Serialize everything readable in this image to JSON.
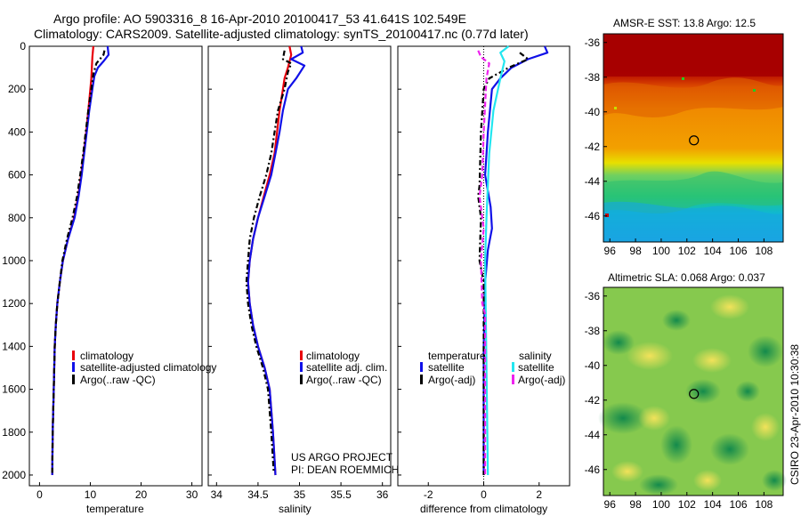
{
  "header": {
    "line1": "Argo profile: AO 5903316_8 16-Apr-2010 20100417_53 41.641S 102.549E",
    "line2": "Climatology: CARS2009. Satellite-adjusted climatology: synTS_20100417.nc (0.77d later)"
  },
  "footer_project": "US ARGO PROJECT",
  "footer_pi": "PI: DEAN ROEMMICH",
  "credit": "CSIRO 23-Apr-2010 10:30:38",
  "colors": {
    "climatology": "#e8000b",
    "satellite": "#1010e8",
    "argo": "#000000",
    "salinity_sat": "#22e6f0",
    "salinity_argo": "#ee22ee"
  },
  "chart_data": [
    {
      "type": "line",
      "xlabel": "temperature",
      "ylabel": "",
      "xlim": [
        -2,
        32
      ],
      "ylim": [
        2050,
        0
      ],
      "xticks": [
        "0",
        "10",
        "20",
        "30"
      ],
      "yticks": [
        "0",
        "200",
        "400",
        "600",
        "800",
        "1000",
        "1200",
        "1400",
        "1600",
        "1800",
        "2000"
      ],
      "legend": [
        "climatology",
        "satellite-adjusted climatology",
        "Argo(..raw -QC)"
      ],
      "series": [
        {
          "name": "climatology",
          "color": "#e8000b",
          "dash": "",
          "points": [
            [
              10.6,
              0
            ],
            [
              10.4,
              50
            ],
            [
              10.3,
              100
            ],
            [
              10.2,
              150
            ],
            [
              10,
              200
            ],
            [
              9.6,
              300
            ],
            [
              9.2,
              400
            ],
            [
              8.7,
              500
            ],
            [
              8.2,
              600
            ],
            [
              7.6,
              700
            ],
            [
              6.8,
              800
            ],
            [
              5.6,
              900
            ],
            [
              4.6,
              1000
            ],
            [
              4,
              1100
            ],
            [
              3.5,
              1200
            ],
            [
              3.2,
              1300
            ],
            [
              3,
              1400
            ],
            [
              2.8,
              1600
            ],
            [
              2.6,
              1800
            ],
            [
              2.5,
              2000
            ]
          ]
        },
        {
          "name": "satellite-adjusted climatology",
          "color": "#1010e8",
          "dash": "",
          "points": [
            [
              13.4,
              0
            ],
            [
              13.6,
              40
            ],
            [
              12.6,
              70
            ],
            [
              11.5,
              100
            ],
            [
              10.8,
              140
            ],
            [
              10.4,
              200
            ],
            [
              9.8,
              300
            ],
            [
              9.3,
              400
            ],
            [
              8.8,
              500
            ],
            [
              8.3,
              600
            ],
            [
              7.7,
              700
            ],
            [
              6.9,
              800
            ],
            [
              5.6,
              900
            ],
            [
              4.6,
              1000
            ],
            [
              4,
              1100
            ],
            [
              3.5,
              1200
            ],
            [
              3.2,
              1300
            ],
            [
              3,
              1400
            ],
            [
              2.8,
              1600
            ],
            [
              2.6,
              1800
            ],
            [
              2.5,
              2000
            ]
          ]
        },
        {
          "name": "Argo(..raw -QC)",
          "color": "#000000",
          "dash": "6,3,2,3",
          "points": [
            [
              12.8,
              20
            ],
            [
              12.6,
              40
            ],
            [
              11.2,
              80
            ],
            [
              10.6,
              130
            ],
            [
              10.2,
              200
            ],
            [
              9.6,
              300
            ],
            [
              9.1,
              400
            ],
            [
              8.6,
              500
            ],
            [
              8,
              600
            ],
            [
              7.4,
              700
            ],
            [
              6.5,
              800
            ],
            [
              5.4,
              900
            ],
            [
              4.5,
              1000
            ],
            [
              4,
              1100
            ],
            [
              3.5,
              1200
            ],
            [
              3.2,
              1300
            ],
            [
              3,
              1400
            ],
            [
              2.8,
              1600
            ],
            [
              2.6,
              1800
            ],
            [
              2.5,
              1990
            ]
          ]
        }
      ]
    },
    {
      "type": "line",
      "xlabel": "salinity",
      "xlim": [
        33.9,
        36.1
      ],
      "ylim": [
        2050,
        0
      ],
      "xticks": [
        "34",
        "34.5",
        "35",
        "35.5",
        "36"
      ],
      "legend": [
        "climatology",
        "satellite adj. clim.",
        "Argo(..raw -QC)"
      ],
      "series": [
        {
          "name": "climatology",
          "color": "#e8000b",
          "dash": "",
          "points": [
            [
              34.88,
              0
            ],
            [
              34.9,
              40
            ],
            [
              34.86,
              100
            ],
            [
              34.82,
              150
            ],
            [
              34.8,
              200
            ],
            [
              34.76,
              300
            ],
            [
              34.73,
              400
            ],
            [
              34.7,
              500
            ],
            [
              34.64,
              600
            ],
            [
              34.57,
              700
            ],
            [
              34.5,
              800
            ],
            [
              34.44,
              900
            ],
            [
              34.4,
              1000
            ],
            [
              34.38,
              1100
            ],
            [
              34.4,
              1200
            ],
            [
              34.44,
              1300
            ],
            [
              34.5,
              1400
            ],
            [
              34.58,
              1500
            ],
            [
              34.64,
              1600
            ],
            [
              34.68,
              1800
            ],
            [
              34.71,
              2000
            ]
          ]
        },
        {
          "name": "satellite adj. clim.",
          "color": "#1010e8",
          "dash": "",
          "points": [
            [
              35.02,
              0
            ],
            [
              35.04,
              30
            ],
            [
              34.9,
              60
            ],
            [
              35.06,
              90
            ],
            [
              34.96,
              150
            ],
            [
              34.86,
              200
            ],
            [
              34.8,
              300
            ],
            [
              34.76,
              400
            ],
            [
              34.71,
              500
            ],
            [
              34.66,
              600
            ],
            [
              34.58,
              700
            ],
            [
              34.5,
              800
            ],
            [
              34.44,
              900
            ],
            [
              34.4,
              1000
            ],
            [
              34.38,
              1100
            ],
            [
              34.4,
              1200
            ],
            [
              34.44,
              1300
            ],
            [
              34.5,
              1400
            ],
            [
              34.58,
              1500
            ],
            [
              34.64,
              1600
            ],
            [
              34.68,
              1800
            ],
            [
              34.71,
              2000
            ]
          ]
        },
        {
          "name": "Argo(..raw -QC)",
          "color": "#000000",
          "dash": "6,3,2,3",
          "points": [
            [
              34.82,
              20
            ],
            [
              34.8,
              60
            ],
            [
              34.9,
              80
            ],
            [
              34.86,
              120
            ],
            [
              34.82,
              200
            ],
            [
              34.74,
              300
            ],
            [
              34.7,
              400
            ],
            [
              34.66,
              500
            ],
            [
              34.6,
              600
            ],
            [
              34.52,
              700
            ],
            [
              34.45,
              800
            ],
            [
              34.4,
              900
            ],
            [
              34.38,
              1000
            ],
            [
              34.36,
              1100
            ],
            [
              34.38,
              1200
            ],
            [
              34.42,
              1300
            ],
            [
              34.48,
              1400
            ],
            [
              34.56,
              1500
            ],
            [
              34.62,
              1600
            ],
            [
              34.66,
              1800
            ],
            [
              34.69,
              1990
            ]
          ]
        }
      ]
    },
    {
      "type": "line",
      "xlabel": "difference from climatology",
      "xlim": [
        -3.1,
        3.1
      ],
      "ylim": [
        2050,
        0
      ],
      "xticks": [
        "-2",
        "0",
        "2"
      ],
      "legend_temperature_title": "temperature",
      "legend_salinity_title": "salinity",
      "legend": [
        "satellite",
        "Argo(-adj)",
        "satellite",
        "Argo(-adj)"
      ],
      "series": [
        {
          "name": "satellite",
          "group": "temperature",
          "color": "#1010e8",
          "dash": "",
          "points": [
            [
              2.2,
              0
            ],
            [
              2.3,
              30
            ],
            [
              1.6,
              60
            ],
            [
              1,
              100
            ],
            [
              0.6,
              150
            ],
            [
              0.3,
              200
            ],
            [
              0.15,
              400
            ],
            [
              0.05,
              600
            ],
            [
              0.25,
              750
            ],
            [
              0.3,
              850
            ],
            [
              0.15,
              950
            ],
            [
              0.05,
              1100
            ],
            [
              0,
              1400
            ],
            [
              0,
              2000
            ]
          ]
        },
        {
          "name": "Argo(-adj)",
          "group": "temperature",
          "color": "#000000",
          "dash": "6,3,2,3",
          "points": [
            [
              1.3,
              30
            ],
            [
              1.6,
              60
            ],
            [
              0.9,
              100
            ],
            [
              0.2,
              150
            ],
            [
              0,
              200
            ],
            [
              -0.1,
              400
            ],
            [
              -0.15,
              650
            ],
            [
              -0.2,
              700
            ],
            [
              -0.1,
              800
            ],
            [
              -0.15,
              1000
            ],
            [
              0,
              1100
            ],
            [
              0,
              1400
            ],
            [
              0,
              2000
            ]
          ]
        },
        {
          "name": "satellite",
          "group": "salinity",
          "color": "#22e6f0",
          "dash": "",
          "points": [
            [
              0.9,
              0
            ],
            [
              0.6,
              30
            ],
            [
              0.75,
              70
            ],
            [
              0.6,
              150
            ],
            [
              0.35,
              300
            ],
            [
              0.2,
              500
            ],
            [
              0.1,
              800
            ],
            [
              0.05,
              1000
            ],
            [
              0.1,
              1500
            ],
            [
              0.15,
              2000
            ]
          ]
        },
        {
          "name": "Argo(-adj)",
          "group": "salinity",
          "color": "#ee22ee",
          "dash": "6,3",
          "points": [
            [
              -0.2,
              20
            ],
            [
              -0.1,
              50
            ],
            [
              0.2,
              80
            ],
            [
              0.1,
              150
            ],
            [
              0,
              400
            ],
            [
              -0.05,
              600
            ],
            [
              -0.15,
              700
            ],
            [
              0,
              850
            ],
            [
              -0.1,
              1000
            ],
            [
              -0.05,
              1200
            ],
            [
              0.05,
              1250
            ],
            [
              0.05,
              2000
            ]
          ]
        }
      ]
    },
    {
      "type": "heatmap",
      "title": "AMSR-E SST: 13.8 Argo: 12.5",
      "xlim": [
        95.5,
        109.5
      ],
      "ylim": [
        -47.5,
        -35.5
      ],
      "xticks": [
        "96",
        "98",
        "100",
        "102",
        "104",
        "106",
        "108"
      ],
      "yticks": [
        "-36",
        "-38",
        "-40",
        "-42",
        "-44",
        "-46"
      ],
      "marker": {
        "lon": 102.549,
        "lat": -41.641
      }
    },
    {
      "type": "heatmap",
      "title": "Altimetric SLA: 0.068 Argo: 0.037",
      "xlim": [
        95.5,
        109.5
      ],
      "ylim": [
        -47.5,
        -35.5
      ],
      "xticks": [
        "96",
        "98",
        "100",
        "102",
        "104",
        "106",
        "108"
      ],
      "yticks": [
        "-36",
        "-38",
        "-40",
        "-42",
        "-44",
        "-46"
      ],
      "marker": {
        "lon": 102.549,
        "lat": -41.641
      }
    }
  ]
}
